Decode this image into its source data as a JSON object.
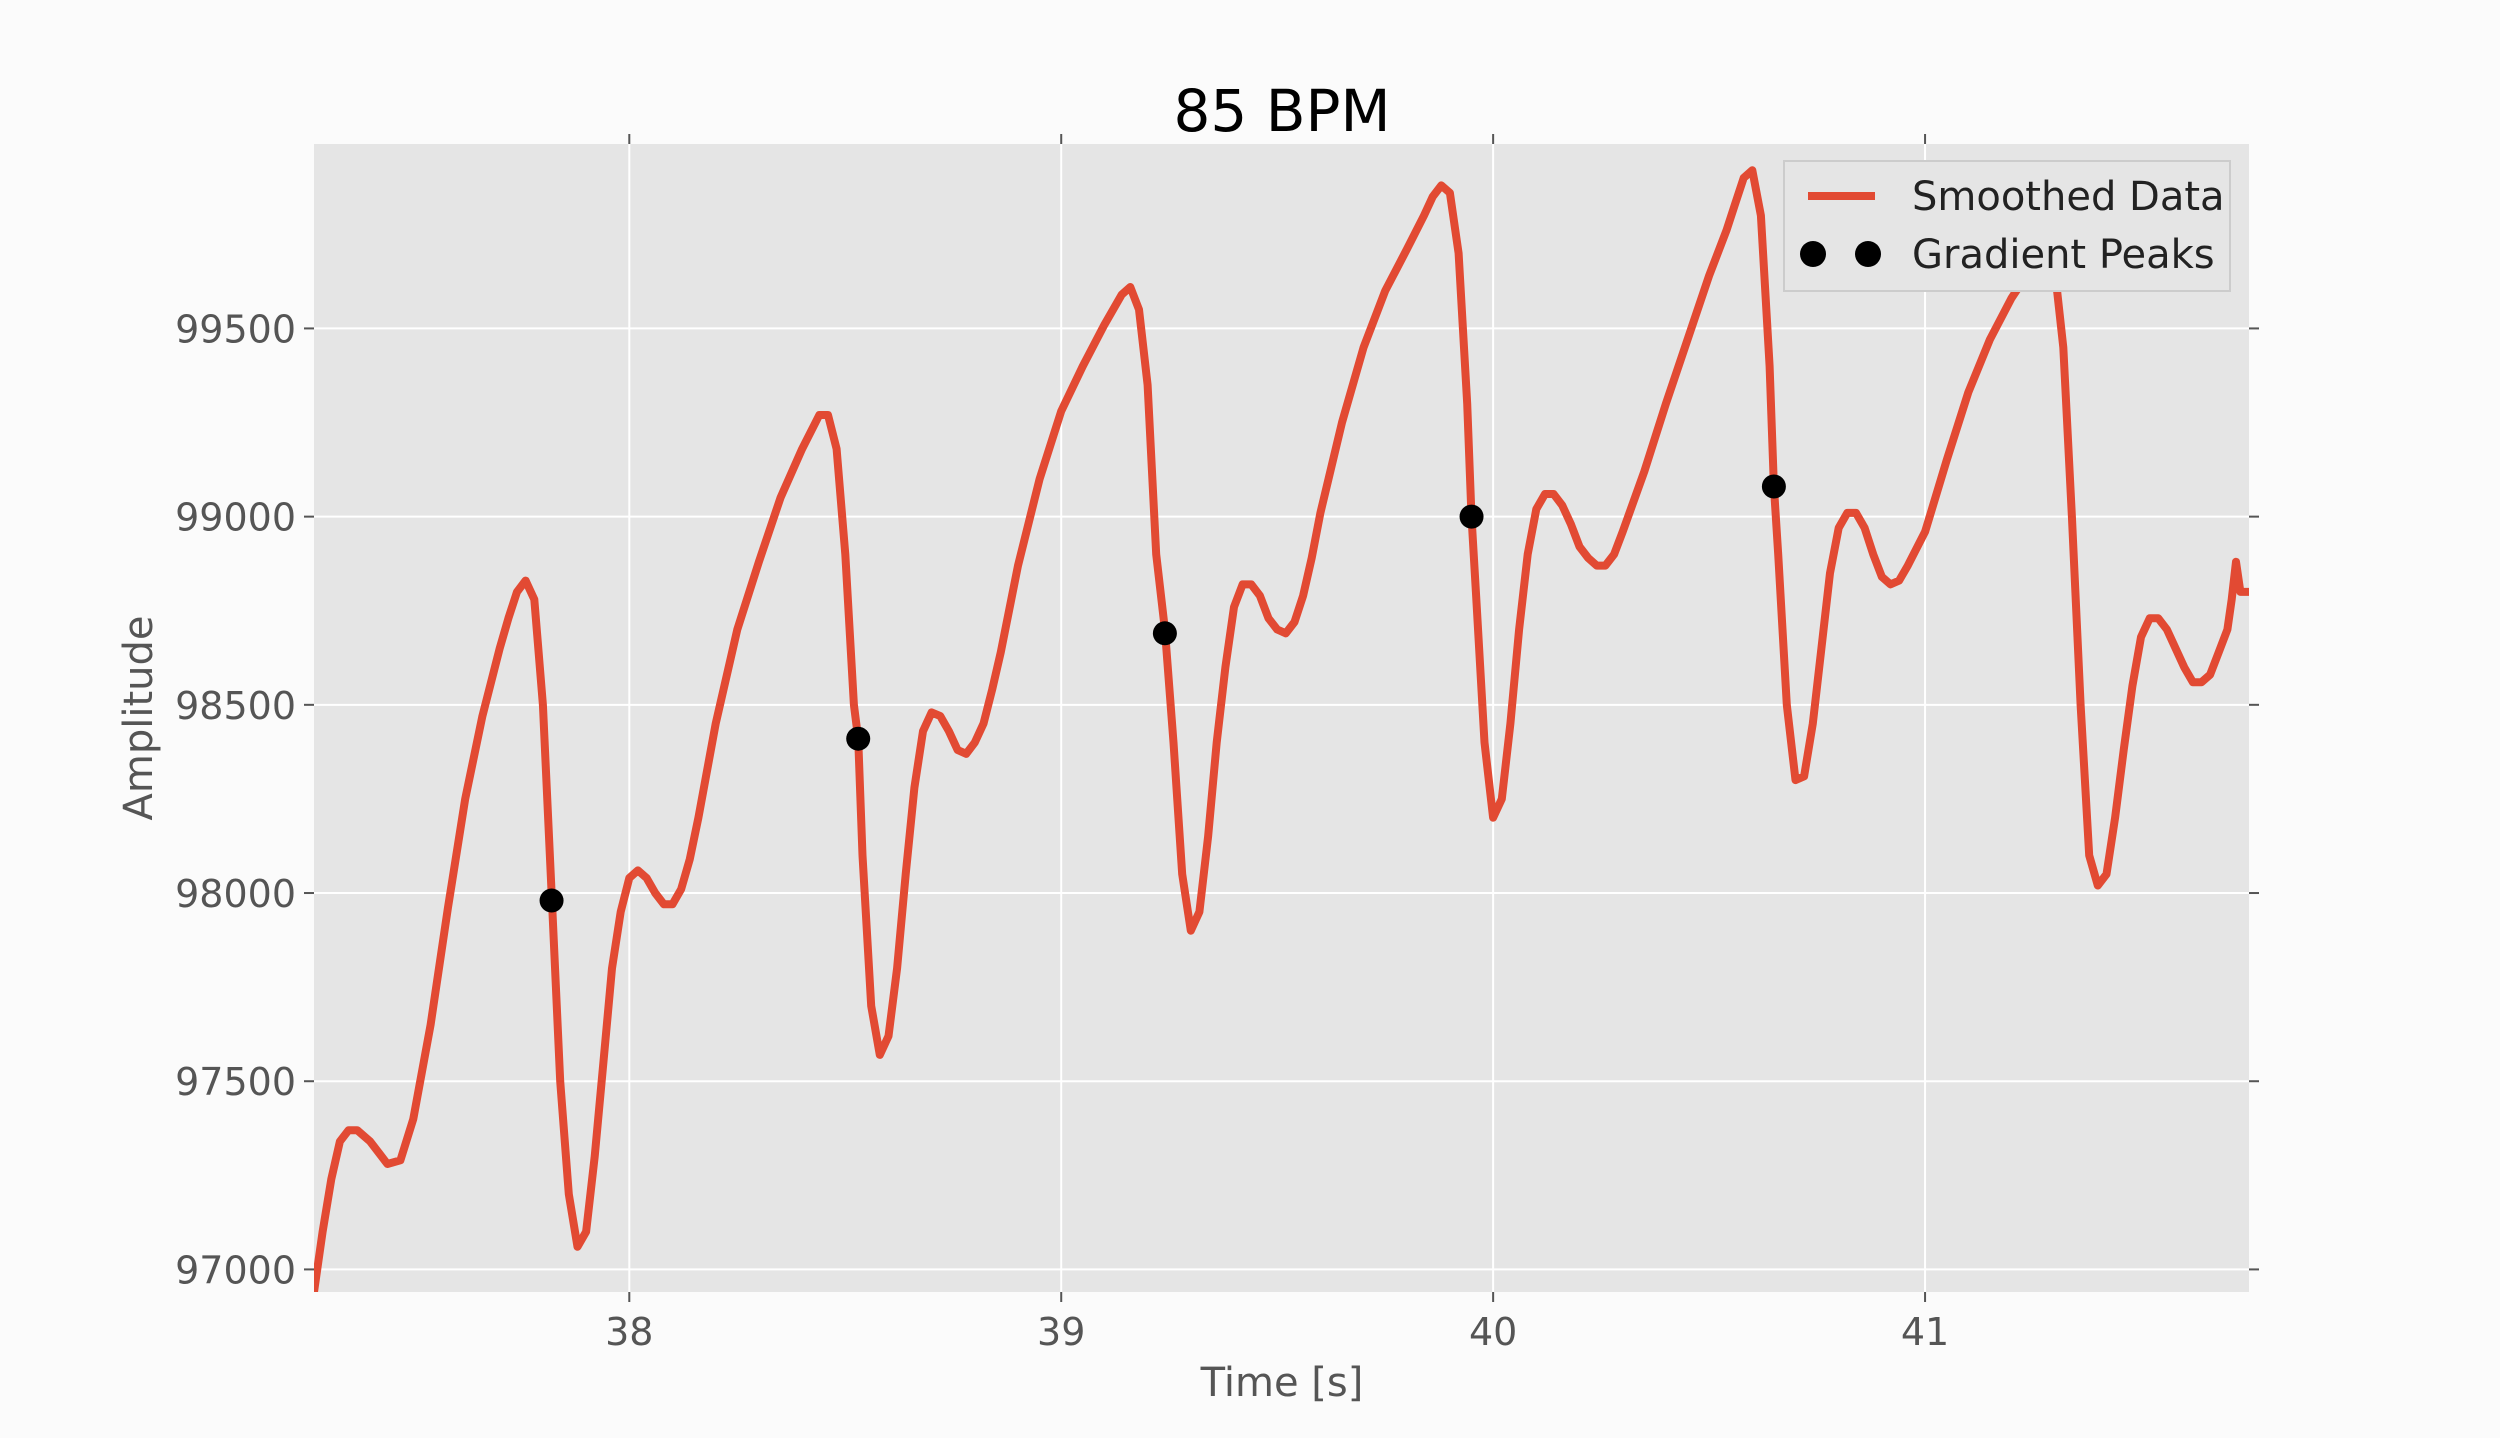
{
  "chart_data": {
    "type": "line",
    "title": "85 BPM",
    "xlabel": "Time [s]",
    "ylabel": "Amplitude",
    "xlim": [
      37.27,
      41.75
    ],
    "ylim": [
      96940,
      99990
    ],
    "xticks": [
      38,
      39,
      40,
      41
    ],
    "yticks": [
      97000,
      97500,
      98000,
      98500,
      99000,
      99500
    ],
    "grid": true,
    "legend": "top-right",
    "series": [
      {
        "name": "Smoothed Data",
        "kind": "line",
        "color": "#E24A33",
        "x": [
          37.27,
          37.29,
          37.31,
          37.33,
          37.35,
          37.37,
          37.4,
          37.44,
          37.47,
          37.5,
          37.54,
          37.58,
          37.62,
          37.66,
          37.7,
          37.72,
          37.74,
          37.76,
          37.78,
          37.8,
          37.82,
          37.83,
          37.84,
          37.86,
          37.88,
          37.9,
          37.92,
          37.94,
          37.96,
          37.98,
          38.0,
          38.02,
          38.04,
          38.06,
          38.08,
          38.1,
          38.12,
          38.14,
          38.16,
          38.2,
          38.25,
          38.3,
          38.35,
          38.4,
          38.44,
          38.46,
          38.48,
          38.5,
          38.52,
          38.53,
          38.54,
          38.56,
          38.58,
          38.6,
          38.62,
          38.64,
          38.66,
          38.68,
          38.7,
          38.72,
          38.74,
          38.76,
          38.78,
          38.8,
          38.82,
          38.84,
          38.86,
          38.9,
          38.95,
          39.0,
          39.05,
          39.1,
          39.14,
          39.16,
          39.18,
          39.2,
          39.22,
          39.24,
          39.26,
          39.28,
          39.3,
          39.32,
          39.34,
          39.36,
          39.38,
          39.4,
          39.42,
          39.44,
          39.46,
          39.48,
          39.5,
          39.52,
          39.54,
          39.56,
          39.58,
          39.6,
          39.65,
          39.7,
          39.75,
          39.8,
          39.84,
          39.86,
          39.88,
          39.9,
          39.92,
          39.94,
          39.95,
          39.96,
          39.98,
          40.0,
          40.02,
          40.04,
          40.06,
          40.08,
          40.1,
          40.12,
          40.14,
          40.16,
          40.18,
          40.2,
          40.22,
          40.24,
          40.26,
          40.28,
          40.3,
          40.35,
          40.4,
          40.45,
          40.5,
          40.54,
          40.56,
          40.58,
          40.6,
          40.62,
          40.64,
          40.65,
          40.66,
          40.68,
          40.7,
          40.72,
          40.74,
          40.76,
          40.78,
          40.8,
          40.82,
          40.84,
          40.86,
          40.88,
          40.9,
          40.92,
          40.94,
          40.96,
          41.0,
          41.05,
          41.1,
          41.15,
          41.2,
          41.24,
          41.26,
          41.28,
          41.3,
          41.32,
          41.34,
          41.36,
          41.38,
          41.4,
          41.42,
          41.44,
          41.46,
          41.48,
          41.5,
          41.52,
          41.54,
          41.56,
          41.58,
          41.6,
          41.62,
          41.64,
          41.66,
          41.68,
          41.7,
          41.71,
          41.72,
          41.73,
          41.75
        ],
        "y": [
          96940,
          97100,
          97240,
          97340,
          97370,
          97370,
          97340,
          97280,
          97290,
          97400,
          97650,
          97960,
          98250,
          98470,
          98650,
          98730,
          98800,
          98830,
          98780,
          98500,
          98000,
          97750,
          97500,
          97200,
          97060,
          97100,
          97300,
          97550,
          97800,
          97950,
          98040,
          98060,
          98040,
          98000,
          97970,
          97970,
          98010,
          98090,
          98200,
          98450,
          98700,
          98880,
          99050,
          99180,
          99270,
          99270,
          99180,
          98900,
          98500,
          98410,
          98100,
          97700,
          97570,
          97620,
          97800,
          98050,
          98280,
          98430,
          98480,
          98470,
          98430,
          98380,
          98370,
          98400,
          98450,
          98540,
          98640,
          98870,
          99100,
          99280,
          99400,
          99510,
          99590,
          99610,
          99550,
          99350,
          98900,
          98700,
          98400,
          98050,
          97900,
          97950,
          98150,
          98400,
          98600,
          98760,
          98820,
          98820,
          98790,
          98730,
          98700,
          98690,
          98720,
          98790,
          98890,
          99010,
          99250,
          99450,
          99600,
          99710,
          99800,
          99850,
          99880,
          99860,
          99700,
          99300,
          99000,
          98800,
          98400,
          98200,
          98250,
          98450,
          98700,
          98900,
          99020,
          99060,
          99060,
          99030,
          98980,
          98920,
          98890,
          98870,
          98870,
          98900,
          98960,
          99120,
          99300,
          99470,
          99640,
          99760,
          99830,
          99900,
          99920,
          99800,
          99400,
          99080,
          98900,
          98500,
          98300,
          98310,
          98450,
          98650,
          98850,
          98970,
          99010,
          99010,
          98970,
          98900,
          98840,
          98820,
          98830,
          98870,
          98960,
          99150,
          99330,
          99470,
          99580,
          99650,
          99680,
          99690,
          99660,
          99450,
          99000,
          98500,
          98100,
          98020,
          98050,
          98200,
          98380,
          98550,
          98680,
          98730,
          98730,
          98700,
          98650,
          98600,
          98560,
          98560,
          98580,
          98640,
          98700,
          98780,
          98880,
          98800,
          98800
        ]
      },
      {
        "name": "Gradient Peaks",
        "kind": "scatter",
        "color": "#000000",
        "x": [
          37.82,
          38.53,
          39.24,
          39.95,
          40.65
        ],
        "y": [
          97980,
          98410,
          98690,
          99000,
          99080
        ]
      }
    ]
  }
}
